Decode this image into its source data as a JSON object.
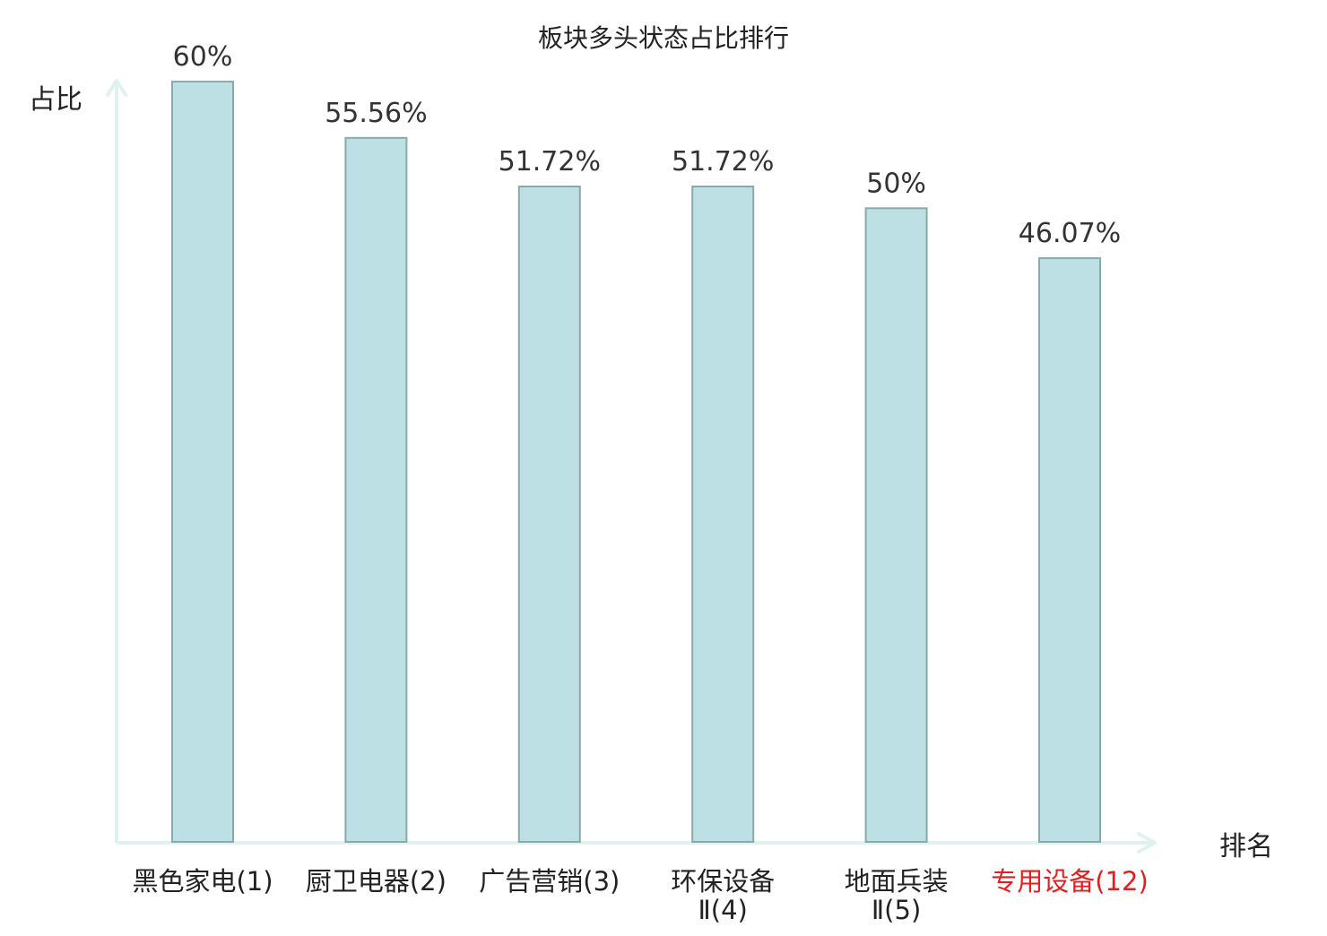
{
  "chart_data": {
    "type": "bar",
    "title": "板块多头状态占比排行",
    "ylabel": "占比",
    "xlabel": "排名",
    "ylim": [
      0,
      60
    ],
    "categories": [
      {
        "lines": [
          "黑色家电(1)"
        ],
        "highlight": false
      },
      {
        "lines": [
          "厨卫电器(2)"
        ],
        "highlight": false
      },
      {
        "lines": [
          "广告营销(3)"
        ],
        "highlight": false
      },
      {
        "lines": [
          "环保设备",
          "Ⅱ(4)"
        ],
        "highlight": false
      },
      {
        "lines": [
          "地面兵装",
          "Ⅱ(5)"
        ],
        "highlight": false
      },
      {
        "lines": [
          "专用设备(12)"
        ],
        "highlight": true
      }
    ],
    "values": [
      60,
      55.56,
      51.72,
      51.72,
      50,
      46.07
    ],
    "labels": [
      "60%",
      "55.56%",
      "51.72%",
      "51.72%",
      "50%",
      "46.07%"
    ],
    "grid": false,
    "colors": {
      "bar_fill": "#bce0e3",
      "bar_stroke": "#8aa9aa",
      "axis": "#e0f2ef",
      "text": "#333333",
      "highlight": "#e02020"
    }
  }
}
